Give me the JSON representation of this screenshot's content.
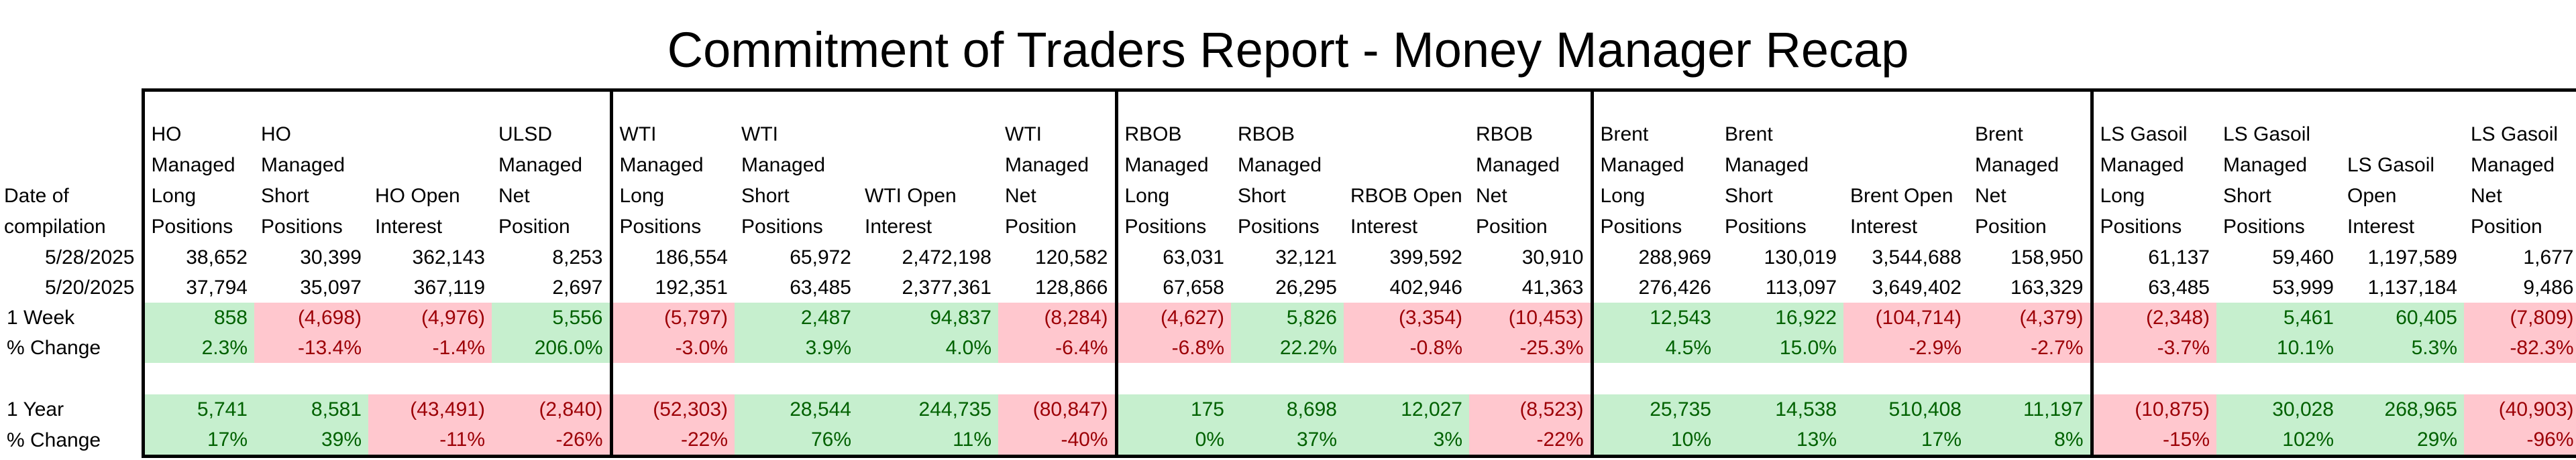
{
  "title": "Commitment of Traders Report - Money Manager Recap",
  "date_header": "Date of compilation",
  "columns": [
    "HO Managed Long Positions",
    "HO Managed Short Positions",
    "HO Open Interest",
    "ULSD Managed Net Position",
    "WTI Managed Long Positions",
    "WTI Managed Short Positions",
    "WTI Open Interest",
    "WTI Managed Net Position",
    "RBOB Managed Long Positions",
    "RBOB Managed Short Positions",
    "RBOB Open Interest",
    "RBOB Managed Net Position",
    "Brent Managed Long Positions",
    "Brent Managed Short Positions",
    "Brent Open Interest",
    "Brent Managed Net Position",
    "LS Gasoil Managed Long Positions",
    "LS Gasoil Managed Short Positions",
    "LS Gasoil Open Interest",
    "LS Gasoil Managed Net Position"
  ],
  "rows": [
    {
      "label": "5/28/2025",
      "values": [
        "38,652",
        "30,399",
        "362,143",
        "8,253",
        "186,554",
        "65,972",
        "2,472,198",
        "120,582",
        "63,031",
        "32,121",
        "399,592",
        "30,910",
        "288,969",
        "130,019",
        "3,544,688",
        "158,950",
        "61,137",
        "59,460",
        "1,197,589",
        "1,677"
      ]
    },
    {
      "label": "5/20/2025",
      "values": [
        "37,794",
        "35,097",
        "367,119",
        "2,697",
        "192,351",
        "63,485",
        "2,377,361",
        "128,866",
        "67,658",
        "26,295",
        "402,946",
        "41,363",
        "276,426",
        "113,097",
        "3,649,402",
        "163,329",
        "63,485",
        "53,999",
        "1,137,184",
        "9,486"
      ]
    },
    {
      "label": "1 Week",
      "values": [
        "858",
        "(4,698)",
        "(4,976)",
        "5,556",
        "(5,797)",
        "2,487",
        "94,837",
        "(8,284)",
        "(4,627)",
        "5,826",
        "(3,354)",
        "(10,453)",
        "12,543",
        "16,922",
        "(104,714)",
        "(4,379)",
        "(2,348)",
        "5,461",
        "60,405",
        "(7,809)"
      ]
    },
    {
      "label": "% Change",
      "values": [
        "2.3%",
        "-13.4%",
        "-1.4%",
        "206.0%",
        "-3.0%",
        "3.9%",
        "4.0%",
        "-6.4%",
        "-6.8%",
        "22.2%",
        "-0.8%",
        "-25.3%",
        "4.5%",
        "15.0%",
        "-2.9%",
        "-2.7%",
        "-3.7%",
        "10.1%",
        "5.3%",
        "-82.3%"
      ]
    },
    {
      "label": "1 Year",
      "values": [
        "5,741",
        "8,581",
        "(43,491)",
        "(2,840)",
        "(52,303)",
        "28,544",
        "244,735",
        "(80,847)",
        "175",
        "8,698",
        "12,027",
        "(8,523)",
        "25,735",
        "14,538",
        "510,408",
        "11,197",
        "(10,875)",
        "30,028",
        "268,965",
        "(40,903)"
      ]
    },
    {
      "label": "% Change",
      "values": [
        "17%",
        "39%",
        "-11%",
        "-26%",
        "-22%",
        "76%",
        "11%",
        "-40%",
        "0%",
        "37%",
        "3%",
        "-22%",
        "10%",
        "13%",
        "17%",
        "8%",
        "-15%",
        "102%",
        "29%",
        "-96%"
      ]
    }
  ],
  "colors": {
    "positive_fill": "#c6efce",
    "positive_text": "#006100",
    "negative_fill": "#ffc7ce",
    "negative_text": "#9c0006"
  }
}
